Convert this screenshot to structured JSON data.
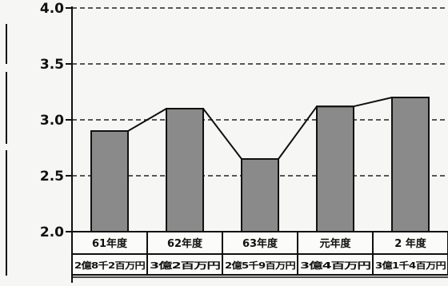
{
  "chart_data": {
    "type": "bar",
    "categories": [
      "61年度",
      "62年度",
      "63年度",
      "元年度",
      "2 年度"
    ],
    "values": [
      2.9,
      3.1,
      2.65,
      3.12,
      3.2
    ],
    "amount_labels": [
      "2億8千2百万円",
      "3億2百万円",
      "2億5千9百万円",
      "3億4百万円",
      "3億1千4百万円"
    ],
    "y_ticks": [
      "2.0",
      "2.5",
      "3.0",
      "3.5",
      "4.0"
    ],
    "ylim": [
      2.0,
      4.0
    ],
    "grid": "dashed horizontal",
    "overlay_line": true,
    "title": "",
    "xlabel": "",
    "ylabel": "",
    "colors": {
      "bar": "#8a8a8a",
      "line": "#111111",
      "background": "#f6f6f4"
    }
  }
}
